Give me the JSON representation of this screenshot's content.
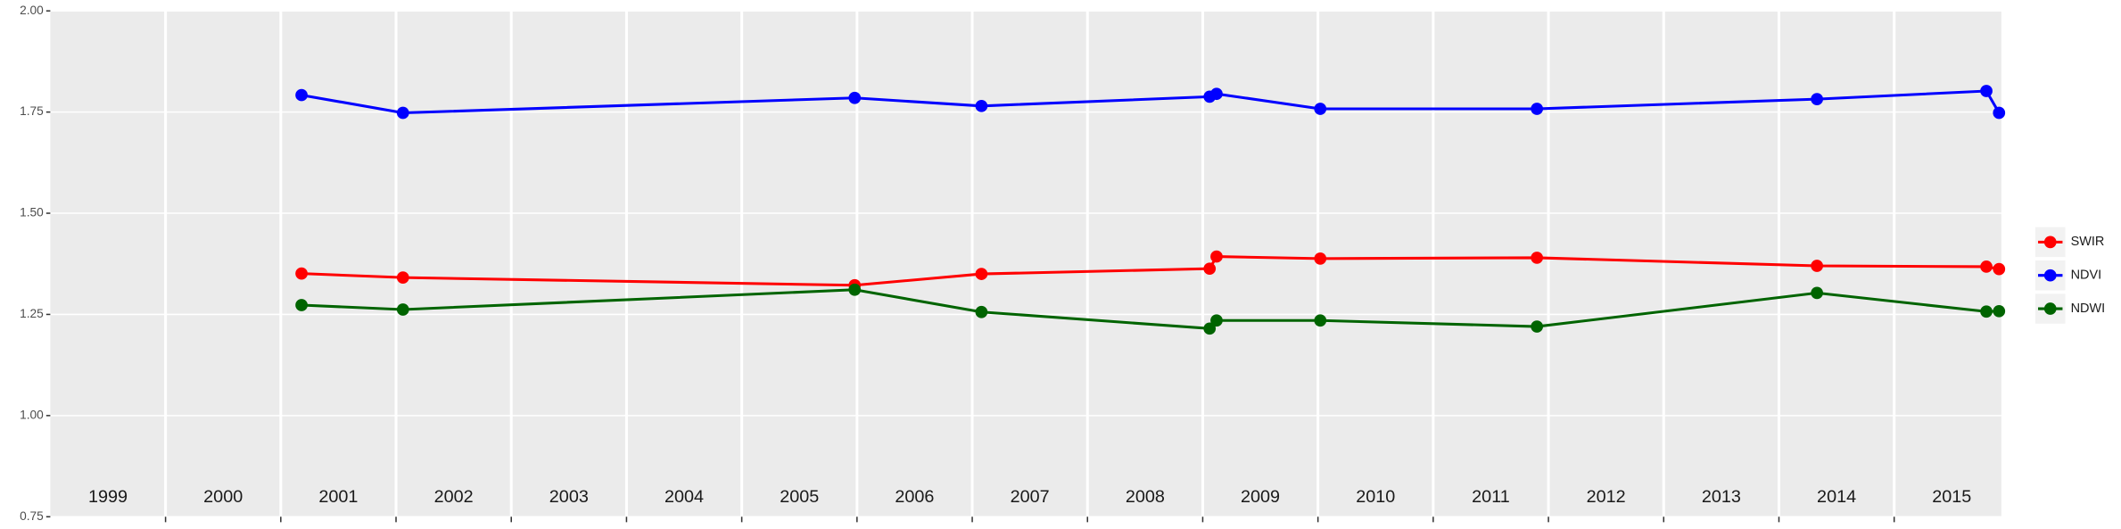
{
  "chart_data": {
    "type": "line",
    "x": [
      2001.18,
      2002.06,
      2005.98,
      2007.08,
      2009.06,
      2009.12,
      2010.02,
      2011.9,
      2014.33,
      2015.8,
      2015.91
    ],
    "series": [
      {
        "name": "SWIR",
        "color": "#ff0000",
        "values": [
          1.351,
          1.341,
          1.322,
          1.35,
          1.363,
          1.393,
          1.388,
          1.39,
          1.37,
          1.368,
          1.362
        ]
      },
      {
        "name": "NDVI",
        "color": "#0000ff",
        "values": [
          1.792,
          1.748,
          1.785,
          1.765,
          1.788,
          1.795,
          1.758,
          1.758,
          1.782,
          1.802,
          1.748
        ]
      },
      {
        "name": "NDWI",
        "color": "#006400",
        "values": [
          1.273,
          1.262,
          1.311,
          1.256,
          1.215,
          1.235,
          1.235,
          1.22,
          1.303,
          1.257,
          1.258
        ]
      }
    ],
    "year_labels": [
      "1999",
      "2000",
      "2001",
      "2002",
      "2003",
      "2004",
      "2005",
      "2006",
      "2007",
      "2008",
      "2009",
      "2010",
      "2011",
      "2012",
      "2013",
      "2014",
      "2015"
    ],
    "xlim": [
      1999.0,
      2015.93
    ],
    "xticks": [
      2000,
      2001,
      2002,
      2003,
      2004,
      2005,
      2006,
      2007,
      2008,
      2009,
      2010,
      2011,
      2012,
      2013,
      2014,
      2015
    ],
    "ylim": [
      0.75,
      2.0
    ],
    "yticks": [
      {
        "value": 0.75,
        "label": "0.75"
      },
      {
        "value": 1.0,
        "label": "1.00"
      },
      {
        "value": 1.25,
        "label": "1.25"
      },
      {
        "value": 1.5,
        "label": "1.50"
      },
      {
        "value": 1.75,
        "label": "1.75"
      },
      {
        "value": 2.0,
        "label": "2.00"
      }
    ],
    "grid": true,
    "legend": "right"
  }
}
